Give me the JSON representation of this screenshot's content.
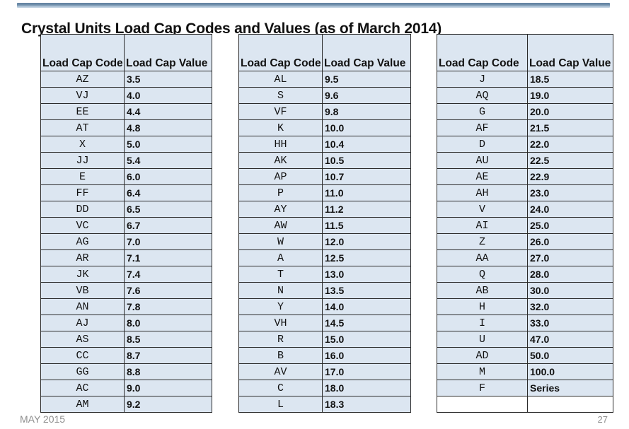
{
  "title": "Crystal Units Load Cap Codes and Values (as of March 2014)",
  "footer": {
    "date": "MAY 2015",
    "page_number": "27"
  },
  "columns": {
    "code": "Load Cap Code",
    "value": "Load Cap Value"
  },
  "colors": {
    "cell_background": "#dce6f1",
    "border": "#2b2b2b",
    "topbar_dark": "#5f7f9f",
    "topbar_light": "#c4d4e2",
    "footer_text": "#8e8e8e"
  },
  "chart_data": {
    "type": "table",
    "title": "Crystal Units Load Cap Codes and Values (as of March 2014)",
    "tables": [
      {
        "headers": [
          "Load Cap Code",
          "Load Cap Value"
        ],
        "rows": [
          [
            "AZ",
            "3.5"
          ],
          [
            "VJ",
            "4.0"
          ],
          [
            "EE",
            "4.4"
          ],
          [
            "AT",
            "4.8"
          ],
          [
            "X",
            "5.0"
          ],
          [
            "JJ",
            "5.4"
          ],
          [
            "E",
            "6.0"
          ],
          [
            "FF",
            "6.4"
          ],
          [
            "DD",
            "6.5"
          ],
          [
            "VC",
            "6.7"
          ],
          [
            "AG",
            "7.0"
          ],
          [
            "AR",
            "7.1"
          ],
          [
            "JK",
            "7.4"
          ],
          [
            "VB",
            "7.6"
          ],
          [
            "AN",
            "7.8"
          ],
          [
            "AJ",
            "8.0"
          ],
          [
            "AS",
            "8.5"
          ],
          [
            "CC",
            "8.7"
          ],
          [
            "GG",
            "8.8"
          ],
          [
            "AC",
            "9.0"
          ],
          [
            "AM",
            "9.2"
          ]
        ]
      },
      {
        "headers": [
          "Load Cap Code",
          "Load Cap Value"
        ],
        "rows": [
          [
            "AL",
            "9.5"
          ],
          [
            "S",
            "9.6"
          ],
          [
            "VF",
            "9.8"
          ],
          [
            "K",
            "10.0"
          ],
          [
            "HH",
            "10.4"
          ],
          [
            "AK",
            "10.5"
          ],
          [
            "AP",
            "10.7"
          ],
          [
            "P",
            "11.0"
          ],
          [
            "AY",
            "11.2"
          ],
          [
            "AW",
            "11.5"
          ],
          [
            "W",
            "12.0"
          ],
          [
            "A",
            "12.5"
          ],
          [
            "T",
            "13.0"
          ],
          [
            "N",
            "13.5"
          ],
          [
            "Y",
            "14.0"
          ],
          [
            "VH",
            "14.5"
          ],
          [
            "R",
            "15.0"
          ],
          [
            "B",
            "16.0"
          ],
          [
            "AV",
            "17.0"
          ],
          [
            "C",
            "18.0"
          ],
          [
            "L",
            "18.3"
          ]
        ]
      },
      {
        "headers": [
          "Load Cap Code",
          "Load Cap Value"
        ],
        "rows": [
          [
            "J",
            "18.5"
          ],
          [
            "AQ",
            "19.0"
          ],
          [
            "G",
            "20.0"
          ],
          [
            "AF",
            "21.5"
          ],
          [
            "D",
            "22.0"
          ],
          [
            "AU",
            "22.5"
          ],
          [
            "AE",
            "22.9"
          ],
          [
            "AH",
            "23.0"
          ],
          [
            "V",
            "24.0"
          ],
          [
            "AI",
            "25.0"
          ],
          [
            "Z",
            "26.0"
          ],
          [
            "AA",
            "27.0"
          ],
          [
            "Q",
            "28.0"
          ],
          [
            "AB",
            "30.0"
          ],
          [
            "H",
            "32.0"
          ],
          [
            "I",
            "33.0"
          ],
          [
            "U",
            "47.0"
          ],
          [
            "AD",
            "50.0"
          ],
          [
            "M",
            "100.0"
          ],
          [
            "F",
            "Series"
          ],
          [
            "",
            ""
          ]
        ]
      }
    ]
  }
}
